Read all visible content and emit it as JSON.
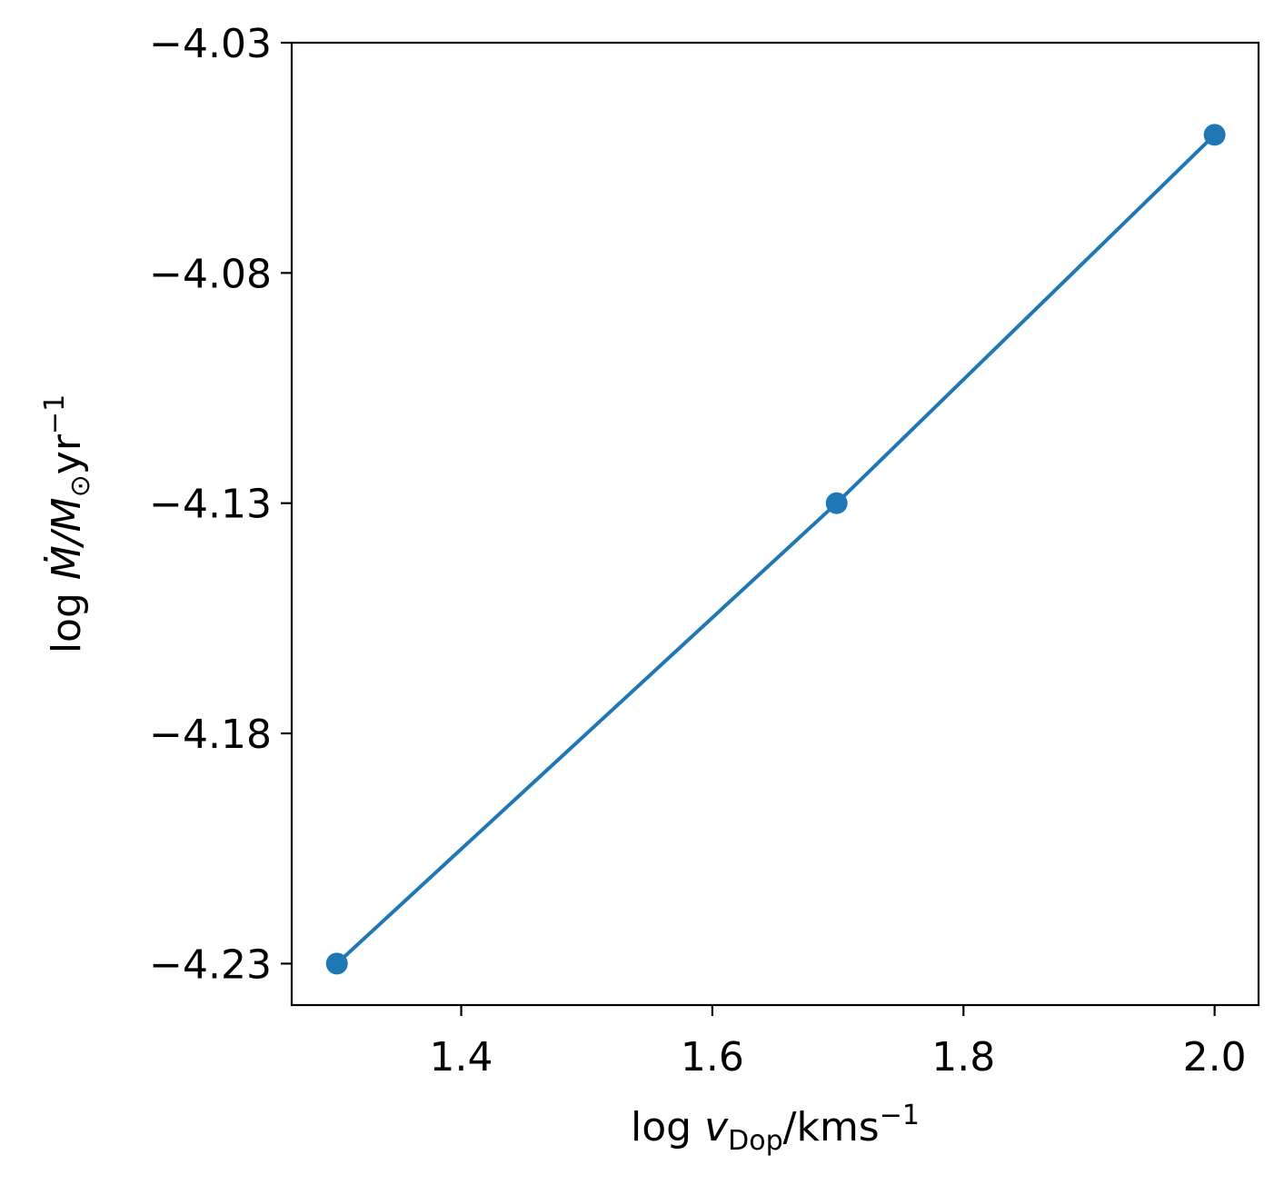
{
  "chart_data": {
    "type": "line",
    "title": "",
    "xlabel": {
      "prefix": "log ",
      "var": "v",
      "sub": "Dop",
      "units": "/kms",
      "sup": "−1"
    },
    "ylabel": {
      "prefix": "log ",
      "var": "Ṁ",
      "mid": "/M",
      "sub": "⊙",
      "units": "yr",
      "sup": "−1"
    },
    "x_ticks": [
      1.4,
      1.6,
      1.8,
      2.0
    ],
    "x_tick_labels": [
      "1.4",
      "1.6",
      "1.8",
      "2.0"
    ],
    "y_ticks": [
      -4.23,
      -4.18,
      -4.13,
      -4.08,
      -4.03
    ],
    "y_tick_labels": [
      "−4.23",
      "−4.18",
      "−4.13",
      "−4.08",
      "−4.03"
    ],
    "xlim": [
      1.265,
      2.035
    ],
    "ylim": [
      -4.239,
      -4.03
    ],
    "grid": false,
    "series": [
      {
        "color": "#1f77b4",
        "marker": "circle",
        "x": [
          1.301,
          1.699,
          2.0
        ],
        "y": [
          -4.23,
          -4.13,
          -4.05
        ]
      }
    ]
  }
}
